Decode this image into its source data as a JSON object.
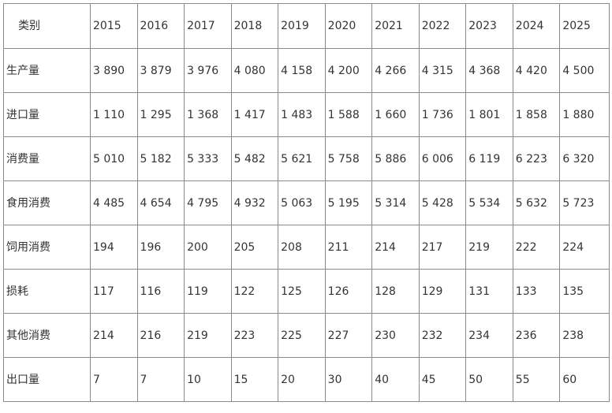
{
  "table": {
    "corner_label": "类别",
    "years": [
      "2015",
      "2016",
      "2017",
      "2018",
      "2019",
      "2020",
      "2021",
      "2022",
      "2023",
      "2024",
      "2025"
    ],
    "rows": [
      {
        "label": "生产量",
        "values": [
          "3 890",
          "3 879",
          "3 976",
          "4 080",
          "4 158",
          "4 200",
          "4 266",
          "4 315",
          "4 368",
          "4 420",
          "4 500"
        ]
      },
      {
        "label": "进口量",
        "values": [
          "1 110",
          "1 295",
          "1 368",
          "1 417",
          "1 483",
          "1 588",
          "1 660",
          "1 736",
          "1 801",
          "1 858",
          "1 880"
        ]
      },
      {
        "label": "消费量",
        "values": [
          "5 010",
          "5 182",
          "5 333",
          "5 482",
          "5 621",
          "5 758",
          "5 886",
          "6 006",
          "6 119",
          "6 223",
          "6 320"
        ]
      },
      {
        "label": "食用消费",
        "values": [
          "4 485",
          "4 654",
          "4 795",
          "4 932",
          "5 063",
          "5 195",
          "5 314",
          "5 428",
          "5 534",
          "5 632",
          "5 723"
        ]
      },
      {
        "label": "饲用消费",
        "values": [
          "194",
          "196",
          "200",
          "205",
          "208",
          "211",
          "214",
          "217",
          "219",
          "222",
          "224"
        ]
      },
      {
        "label": "损耗",
        "values": [
          "117",
          "116",
          "119",
          "122",
          "125",
          "126",
          "128",
          "129",
          "131",
          "133",
          "135"
        ]
      },
      {
        "label": "其他消费",
        "values": [
          "214",
          "216",
          "219",
          "223",
          "225",
          "227",
          "230",
          "232",
          "234",
          "236",
          "238"
        ]
      },
      {
        "label": "出口量",
        "values": [
          "7",
          "7",
          "10",
          "15",
          "20",
          "30",
          "40",
          "45",
          "50",
          "55",
          "60"
        ]
      }
    ]
  }
}
